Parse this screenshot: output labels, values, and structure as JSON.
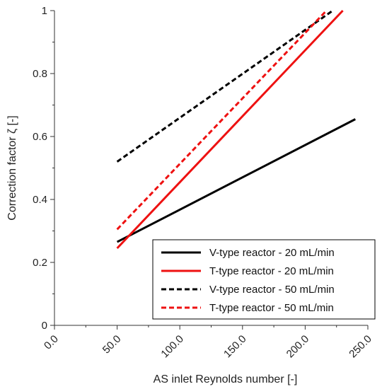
{
  "chart_data": {
    "type": "line",
    "xlabel": "AS inlet Reynolds number [-]",
    "ylabel": "Correction factor ζ [-]",
    "xlim": [
      0,
      250
    ],
    "ylim": [
      0,
      1
    ],
    "x_ticks": [
      "0.0",
      "50.0",
      "100.0",
      "150.0",
      "200.0",
      "250.0"
    ],
    "y_ticks": [
      "0",
      "0.2",
      "0.4",
      "0.6",
      "0.8",
      "1"
    ],
    "x_tick_values": [
      0,
      50,
      100,
      150,
      200,
      250
    ],
    "y_tick_values": [
      0,
      0.2,
      0.4,
      0.6,
      0.8,
      1
    ],
    "grid": false,
    "legend_position": "bottom-right",
    "series": [
      {
        "name": "V-type reactor - 20 mL/min",
        "color": "#000000",
        "style": "solid",
        "points": [
          [
            50,
            0.265
          ],
          [
            240,
            0.655
          ]
        ]
      },
      {
        "name": "T-type reactor - 20 mL/min",
        "color": "#ee1111",
        "style": "solid",
        "points": [
          [
            50,
            0.245
          ],
          [
            230,
            1.0
          ]
        ]
      },
      {
        "name": "V-type reactor - 50 mL/min",
        "color": "#000000",
        "style": "dashed",
        "points": [
          [
            50,
            0.52
          ],
          [
            222,
            1.0
          ]
        ]
      },
      {
        "name": "T-type reactor - 50 mL/min",
        "color": "#ee1111",
        "style": "dashed",
        "points": [
          [
            50,
            0.305
          ],
          [
            217,
            1.0
          ]
        ]
      }
    ]
  }
}
